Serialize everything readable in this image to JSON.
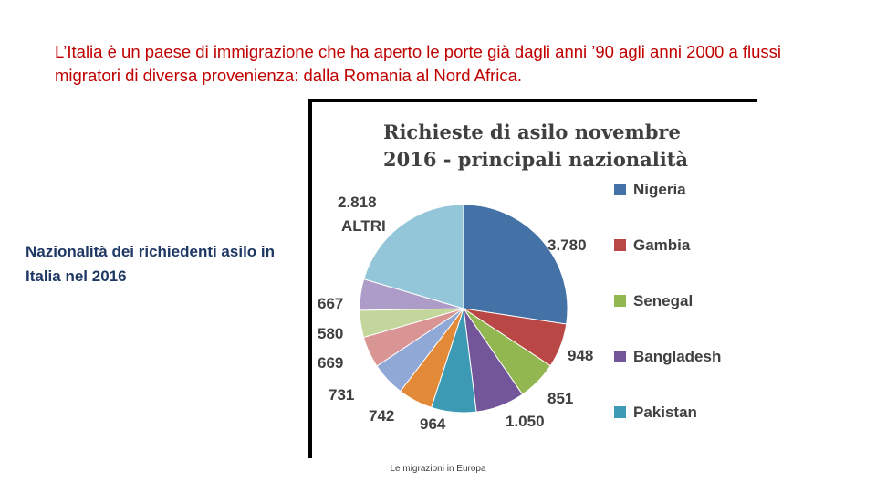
{
  "slide": {
    "intro_text": "L’Italia è un paese di immigrazione che ha aperto le porte già dagli anni ’90 agli anni 2000 a flussi migratori di diversa provenienza: dalla Romania al Nord Africa.",
    "side_label": " Nazionalità dei richiedenti asilo in Italia nel 2016",
    "footer": "Le migrazioni in Europa"
  },
  "chart_data": {
    "type": "pie",
    "title_line1": "Richieste di asilo novembre",
    "title_line2": "2016 - principali nazionalità",
    "slices": [
      {
        "name": "Nigeria",
        "value": 3780,
        "label": "3.780",
        "color": "#4472a6"
      },
      {
        "name": "Gambia",
        "value": 948,
        "label": "948",
        "color": "#b94745"
      },
      {
        "name": "Senegal",
        "value": 851,
        "label": "851",
        "color": "#92b650"
      },
      {
        "name": "Bangladesh",
        "value": 1050,
        "label": "1.050",
        "color": "#73569a"
      },
      {
        "name": "Pakistan",
        "value": 964,
        "label": "964",
        "color": "#3d9ab4"
      },
      {
        "name": "",
        "value": 742,
        "label": "742",
        "color": "#e38a38"
      },
      {
        "name": "",
        "value": 731,
        "label": "731",
        "color": "#8fa8d6"
      },
      {
        "name": "",
        "value": 669,
        "label": "669",
        "color": "#d99594"
      },
      {
        "name": "",
        "value": 580,
        "label": "580",
        "color": "#c3d69b"
      },
      {
        "name": "",
        "value": 667,
        "label": "667",
        "color": "#ad9bc8"
      },
      {
        "name": "ALTRI",
        "value": 2818,
        "label": "2.818",
        "color": "#93c6d8"
      }
    ],
    "legend": [
      "Nigeria",
      "Gambia",
      "Senegal",
      "Bangladesh",
      "Pakistan"
    ],
    "legend_placement": "right"
  }
}
